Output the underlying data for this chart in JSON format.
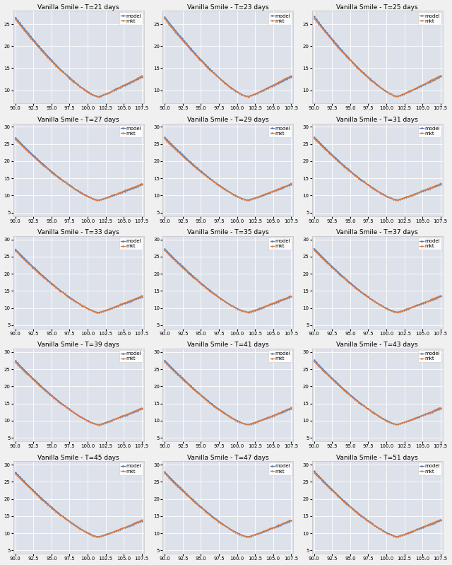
{
  "rows": 5,
  "cols": 3,
  "days": [
    21,
    23,
    25,
    27,
    29,
    31,
    33,
    35,
    37,
    39,
    41,
    43,
    45,
    47,
    51
  ],
  "x_min": 90.0,
  "x_max": 107.5,
  "x_ticks": [
    90.0,
    92.5,
    95.0,
    97.5,
    100.0,
    102.5,
    105.0,
    107.5
  ],
  "y_ticks_row0": [
    10,
    15,
    20,
    25
  ],
  "y_ticks_other": [
    5,
    10,
    15,
    20,
    25,
    30
  ],
  "model_color": "#5578b4",
  "mkt_color": "#e07c3c",
  "bg_color": "#dde1ea",
  "fig_bg": "#f0f0f0",
  "title_fontsize": 6.5,
  "tick_fontsize": 5.0,
  "legend_fontsize": 5.0,
  "line_width": 0.9,
  "marker_size": 1.2,
  "smile_atm_x": 101.5,
  "smile_atm_y": 8.5,
  "smile_left_y": 26.5,
  "smile_right_y": 13.0,
  "smile_left_x": 90.0,
  "smile_right_x": 107.5
}
